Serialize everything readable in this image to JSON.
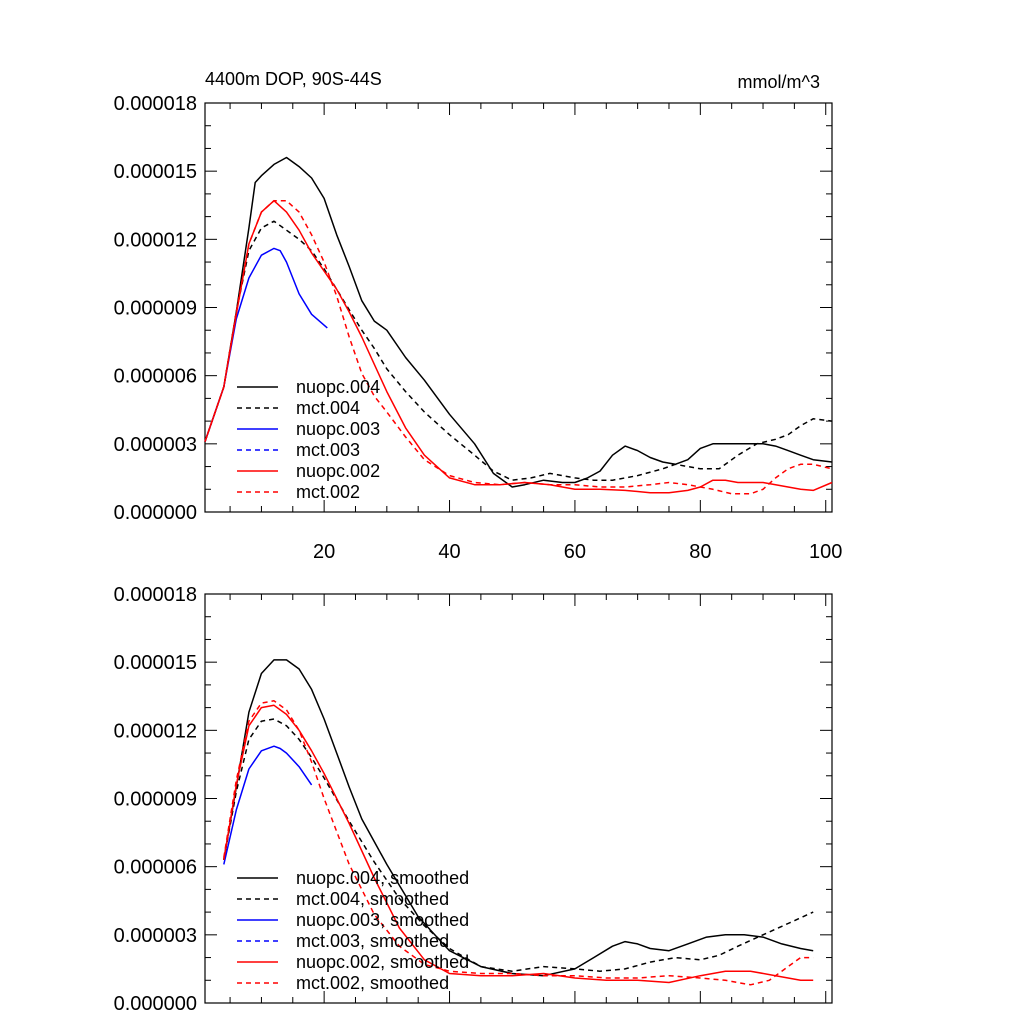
{
  "chart_data": [
    {
      "type": "line",
      "title": "4400m DOP, 90S-44S",
      "units": "mmol/m^3",
      "xlim": [
        1,
        101
      ],
      "ylim": [
        0,
        1.8e-05
      ],
      "xticks": [
        20,
        40,
        60,
        80,
        100
      ],
      "xtick_labels": [
        "20",
        "40",
        "60",
        "80",
        "100"
      ],
      "yticks": [
        0,
        3e-06,
        6e-06,
        9e-06,
        1.2e-05,
        1.5e-05,
        1.8e-05
      ],
      "ytick_labels": [
        "0.000000",
        "0.000003",
        "0.000006",
        "0.000009",
        "0.000012",
        "0.000015",
        "0.000018"
      ],
      "legend_position": "lower-left",
      "grid": false,
      "series": [
        {
          "name": "nuopc.004",
          "color": "#000000",
          "dash": "solid",
          "x": [
            1,
            4,
            6,
            8,
            9,
            10,
            12,
            14,
            16,
            18,
            20,
            22,
            24,
            26,
            28,
            30,
            33,
            36,
            40,
            44,
            47,
            50,
            52,
            55,
            58,
            60,
            62,
            64,
            66,
            68,
            70,
            72,
            74,
            76,
            78,
            80,
            82,
            84,
            86,
            88,
            90,
            92,
            94,
            96,
            98,
            101
          ],
          "y": [
            3.1e-06,
            5.5e-06,
            8.8e-06,
            1.25e-05,
            1.45e-05,
            1.48e-05,
            1.53e-05,
            1.56e-05,
            1.52e-05,
            1.47e-05,
            1.38e-05,
            1.22e-05,
            1.08e-05,
            9.3e-06,
            8.4e-06,
            8e-06,
            6.8e-06,
            5.8e-06,
            4.3e-06,
            3e-06,
            1.7e-06,
            1.1e-06,
            1.2e-06,
            1.4e-06,
            1.3e-06,
            1.3e-06,
            1.5e-06,
            1.8e-06,
            2.5e-06,
            2.9e-06,
            2.7e-06,
            2.4e-06,
            2.2e-06,
            2.1e-06,
            2.3e-06,
            2.8e-06,
            3e-06,
            3e-06,
            3e-06,
            3e-06,
            3e-06,
            2.9e-06,
            2.7e-06,
            2.5e-06,
            2.3e-06,
            2.2e-06
          ]
        },
        {
          "name": "mct.004",
          "color": "#000000",
          "dash": "dashed",
          "x": [
            1,
            4,
            6,
            8,
            10,
            12,
            14,
            16,
            18,
            20,
            22,
            24,
            26,
            28,
            30,
            33,
            36,
            40,
            44,
            47,
            50,
            53,
            56,
            60,
            63,
            66,
            70,
            74,
            76,
            80,
            83,
            86,
            89,
            92,
            94,
            96,
            98,
            101
          ],
          "y": [
            3.1e-06,
            5.5e-06,
            8.8e-06,
            1.15e-05,
            1.25e-05,
            1.28e-05,
            1.24e-05,
            1.2e-05,
            1.15e-05,
            1.07e-05,
            9.8e-06,
            8.9e-06,
            8e-06,
            7.2e-06,
            6.3e-06,
            5.3e-06,
            4.4e-06,
            3.4e-06,
            2.5e-06,
            1.8e-06,
            1.4e-06,
            1.5e-06,
            1.7e-06,
            1.5e-06,
            1.4e-06,
            1.4e-06,
            1.6e-06,
            1.9e-06,
            2.1e-06,
            1.9e-06,
            1.9e-06,
            2.5e-06,
            3e-06,
            3.2e-06,
            3.4e-06,
            3.8e-06,
            4.1e-06,
            4e-06
          ]
        },
        {
          "name": "nuopc.003",
          "color": "#0000ff",
          "dash": "solid",
          "x": [
            1,
            4,
            6,
            8,
            10,
            12,
            13,
            14,
            16,
            18,
            20.5
          ],
          "y": [
            3.1e-06,
            5.5e-06,
            8.5e-06,
            1.03e-05,
            1.13e-05,
            1.16e-05,
            1.15e-05,
            1.1e-05,
            9.6e-06,
            8.7e-06,
            8.1e-06
          ]
        },
        {
          "name": "mct.003",
          "color": "#0000ff",
          "dash": "dashed",
          "x": [],
          "y": []
        },
        {
          "name": "nuopc.002",
          "color": "#ff0000",
          "dash": "solid",
          "x": [
            1,
            4,
            6,
            8,
            10,
            12,
            14,
            16,
            18,
            20,
            22,
            24,
            26,
            28,
            30,
            33,
            36,
            40,
            44,
            48,
            52,
            56,
            60,
            64,
            68,
            72,
            75,
            78,
            80,
            82,
            84,
            86,
            88,
            90,
            92,
            94,
            96,
            98,
            101
          ],
          "y": [
            3.1e-06,
            5.5e-06,
            8.7e-06,
            1.18e-05,
            1.32e-05,
            1.37e-05,
            1.32e-05,
            1.24e-05,
            1.14e-05,
            1.06e-05,
            9.8e-06,
            8.8e-06,
            7.7e-06,
            6.5e-06,
            5.3e-06,
            3.7e-06,
            2.5e-06,
            1.5e-06,
            1.2e-06,
            1.2e-06,
            1.3e-06,
            1.2e-06,
            1e-06,
            1e-06,
            9.5e-07,
            8.5e-07,
            8.5e-07,
            9.5e-07,
            1.1e-06,
            1.4e-06,
            1.4e-06,
            1.3e-06,
            1.3e-06,
            1.3e-06,
            1.2e-06,
            1.1e-06,
            1e-06,
            9.5e-07,
            1.3e-06
          ]
        },
        {
          "name": "mct.002",
          "color": "#ff0000",
          "dash": "dashed",
          "x": [
            1,
            4,
            6,
            8,
            10,
            12,
            14,
            16,
            18,
            20,
            22,
            24,
            26,
            28,
            30,
            33,
            36,
            40,
            44,
            48,
            52,
            56,
            60,
            64,
            68,
            72,
            75,
            78,
            82,
            85,
            88,
            90,
            92,
            94,
            96,
            98,
            101
          ],
          "y": [
            3.1e-06,
            5.5e-06,
            8.8e-06,
            1.18e-05,
            1.32e-05,
            1.37e-05,
            1.37e-05,
            1.32e-05,
            1.22e-05,
            1.1e-05,
            9.5e-06,
            7.7e-06,
            6.1e-06,
            5.1e-06,
            4.4e-06,
            3.3e-06,
            2.3e-06,
            1.6e-06,
            1.3e-06,
            1.2e-06,
            1.3e-06,
            1.2e-06,
            1.2e-06,
            1.1e-06,
            1.1e-06,
            1.2e-06,
            1.3e-06,
            1.2e-06,
            1e-06,
            8e-07,
            8e-07,
            1e-06,
            1.5e-06,
            1.9e-06,
            2.1e-06,
            2.1e-06,
            1.9e-06
          ]
        }
      ]
    },
    {
      "type": "line",
      "title": "",
      "units": "",
      "xlim": [
        1,
        101
      ],
      "ylim": [
        0,
        1.8e-05
      ],
      "xticks": [
        20,
        40,
        60,
        80,
        100
      ],
      "xtick_labels": [],
      "yticks": [
        0,
        3e-06,
        6e-06,
        9e-06,
        1.2e-05,
        1.5e-05,
        1.8e-05
      ],
      "ytick_labels": [
        "0.000000",
        "0.000003",
        "0.000006",
        "0.000009",
        "0.000012",
        "0.000015",
        "0.000018"
      ],
      "legend_position": "lower-left",
      "grid": false,
      "series": [
        {
          "name": "nuopc.004, smoothed",
          "color": "#000000",
          "dash": "solid",
          "x": [
            4,
            6,
            8,
            10,
            12,
            14,
            16,
            18,
            20,
            22,
            24,
            26,
            30,
            35,
            40,
            45,
            50,
            55,
            60,
            63,
            66,
            68,
            70,
            72,
            75,
            78,
            81,
            84,
            87,
            90,
            93,
            96,
            98
          ],
          "y": [
            6.3e-06,
            9.5e-06,
            1.28e-05,
            1.45e-05,
            1.51e-05,
            1.51e-05,
            1.47e-05,
            1.38e-05,
            1.25e-05,
            1.1e-05,
            9.5e-06,
            8.1e-06,
            6.1e-06,
            3.8e-06,
            2.3e-06,
            1.6e-06,
            1.3e-06,
            1.2e-06,
            1.5e-06,
            2e-06,
            2.5e-06,
            2.7e-06,
            2.6e-06,
            2.4e-06,
            2.3e-06,
            2.6e-06,
            2.9e-06,
            3e-06,
            3e-06,
            2.9e-06,
            2.6e-06,
            2.4e-06,
            2.3e-06
          ]
        },
        {
          "name": "mct.004, smoothed",
          "color": "#000000",
          "dash": "dashed",
          "x": [
            4,
            6,
            8,
            10,
            12,
            14,
            16,
            18,
            20,
            24,
            28,
            32,
            36,
            40,
            45,
            50,
            55,
            60,
            64,
            68,
            72,
            76,
            80,
            83,
            86,
            90,
            94,
            98
          ],
          "y": [
            6.3e-06,
            9.3e-06,
            1.16e-05,
            1.24e-05,
            1.25e-05,
            1.22e-05,
            1.16e-05,
            1.08e-05,
            9.9e-06,
            8e-06,
            6.2e-06,
            4.6e-06,
            3.4e-06,
            2.4e-06,
            1.6e-06,
            1.4e-06,
            1.6e-06,
            1.5e-06,
            1.4e-06,
            1.5e-06,
            1.8e-06,
            2e-06,
            1.9e-06,
            2.1e-06,
            2.5e-06,
            3e-06,
            3.5e-06,
            4e-06
          ]
        },
        {
          "name": "nuopc.003, smoothed",
          "color": "#0000ff",
          "dash": "solid",
          "x": [
            4,
            6,
            8,
            10,
            12,
            13,
            14,
            16,
            18
          ],
          "y": [
            6.1e-06,
            8.5e-06,
            1.03e-05,
            1.11e-05,
            1.13e-05,
            1.12e-05,
            1.1e-05,
            1.04e-05,
            9.6e-06
          ]
        },
        {
          "name": "mct.003, smoothed",
          "color": "#0000ff",
          "dash": "dashed",
          "x": [],
          "y": []
        },
        {
          "name": "nuopc.002, smoothed",
          "color": "#ff0000",
          "dash": "solid",
          "x": [
            4,
            6,
            8,
            10,
            12,
            14,
            16,
            18,
            20,
            24,
            28,
            32,
            36,
            40,
            45,
            50,
            55,
            60,
            65,
            70,
            75,
            80,
            84,
            88,
            92,
            96,
            98
          ],
          "y": [
            6.3e-06,
            9.6e-06,
            1.22e-05,
            1.3e-05,
            1.31e-05,
            1.27e-05,
            1.2e-05,
            1.11e-05,
            1.01e-05,
            7.9e-06,
            5.5e-06,
            3.3e-06,
            1.9e-06,
            1.3e-06,
            1.2e-06,
            1.2e-06,
            1.3e-06,
            1.1e-06,
            1e-06,
            1e-06,
            9e-07,
            1.2e-06,
            1.4e-06,
            1.4e-06,
            1.2e-06,
            1e-06,
            1e-06
          ]
        },
        {
          "name": "mct.002, smoothed",
          "color": "#ff0000",
          "dash": "dashed",
          "x": [
            4,
            6,
            8,
            10,
            12,
            14,
            16,
            18,
            20,
            24,
            28,
            32,
            36,
            40,
            45,
            50,
            55,
            60,
            65,
            70,
            75,
            80,
            84,
            88,
            91,
            94,
            96,
            98
          ],
          "y": [
            6.4e-06,
            9.8e-06,
            1.24e-05,
            1.32e-05,
            1.33e-05,
            1.29e-05,
            1.2e-05,
            1.06e-05,
            9e-06,
            6.1e-06,
            3.9e-06,
            2.5e-06,
            1.7e-06,
            1.4e-06,
            1.3e-06,
            1.3e-06,
            1.2e-06,
            1.2e-06,
            1.1e-06,
            1.1e-06,
            1.2e-06,
            1.1e-06,
            1e-06,
            8e-07,
            1e-06,
            1.6e-06,
            2e-06,
            2e-06
          ]
        }
      ]
    }
  ]
}
